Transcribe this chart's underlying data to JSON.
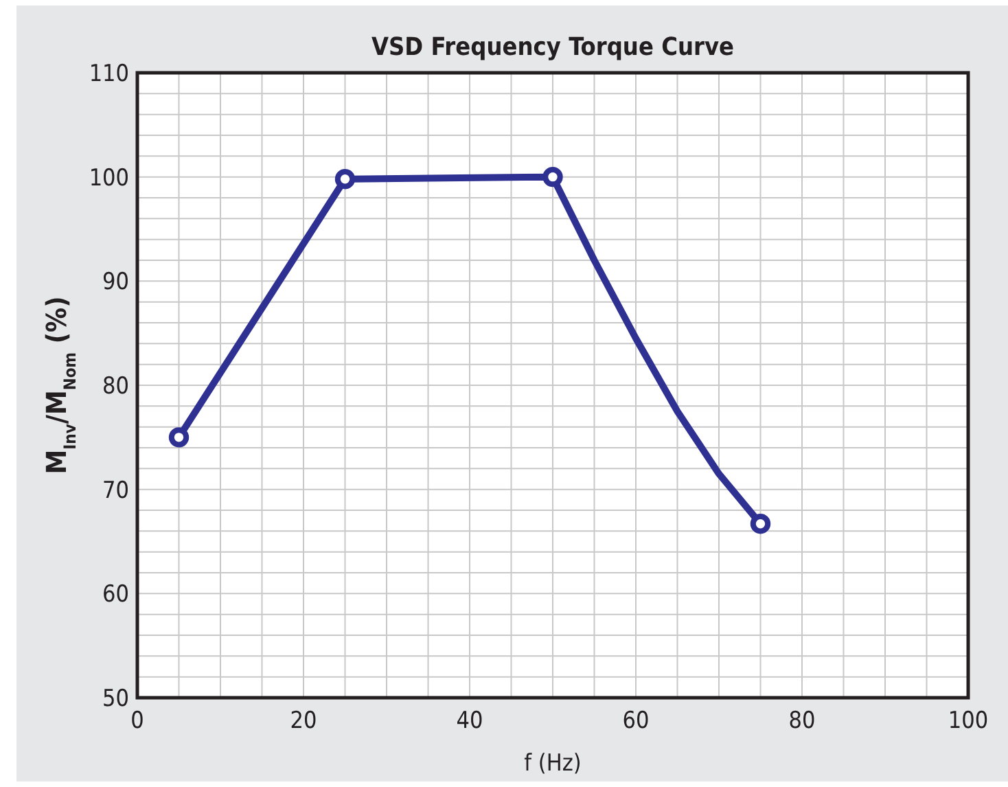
{
  "chart_data": {
    "type": "line",
    "title": "VSD Frequency Torque Curve",
    "xlabel": "f (Hz)",
    "ylabel": "M$_{Inv}$/M$_{Nom}$ (%)",
    "xlim": [
      0,
      100
    ],
    "ylim": [
      50,
      110
    ],
    "xticks": [
      0,
      {
        "value": 5,
        "label": null
      },
      {
        "value": 10,
        "label": null
      },
      {
        "value": 15,
        "label": null
      },
      20,
      {
        "value": 25,
        "label": null
      },
      {
        "value": 30,
        "label": null
      },
      {
        "value": 35,
        "label": null
      },
      40,
      {
        "value": 45,
        "label": null
      },
      {
        "value": 50,
        "label": null
      },
      {
        "value": 55,
        "label": null
      },
      60,
      {
        "value": 65,
        "label": null
      },
      {
        "value": 70,
        "label": null
      },
      {
        "value": 75,
        "label": null
      },
      80,
      {
        "value": 85,
        "label": null
      },
      {
        "value": 90,
        "label": null
      },
      {
        "value": 95,
        "label": null
      },
      100
    ],
    "yticks": [
      50,
      {
        "value": 52,
        "label": null
      },
      {
        "value": 54,
        "label": null
      },
      {
        "value": 56,
        "label": null
      },
      {
        "value": 58,
        "label": null
      },
      60,
      {
        "value": 62,
        "label": null
      },
      {
        "value": 64,
        "label": null
      },
      {
        "value": 66,
        "label": null
      },
      {
        "value": 68,
        "label": null
      },
      70,
      {
        "value": 72,
        "label": null
      },
      {
        "value": 74,
        "label": null
      },
      {
        "value": 76,
        "label": null
      },
      {
        "value": 78,
        "label": null
      },
      80,
      {
        "value": 82,
        "label": null
      },
      {
        "value": 84,
        "label": null
      },
      {
        "value": 86,
        "label": null
      },
      {
        "value": 88,
        "label": null
      },
      90,
      {
        "value": 92,
        "label": null
      },
      {
        "value": 94,
        "label": null
      },
      {
        "value": 96,
        "label": null
      },
      {
        "value": 98,
        "label": null
      },
      100,
      {
        "value": 102,
        "label": null
      },
      {
        "value": 104,
        "label": null
      },
      {
        "value": 106,
        "label": null
      },
      {
        "value": 108,
        "label": null
      },
      110
    ],
    "grid": true,
    "series": [
      {
        "color": "#2e3192",
        "marker": "none",
        "x": [
          5,
          25,
          50,
          55,
          60,
          65,
          70,
          75
        ],
        "values": [
          75,
          99.8,
          100,
          92,
          84.5,
          77.5,
          71.5,
          66.7
        ]
      },
      {
        "type": "scatter",
        "color": "#2e3192",
        "marker": "circle",
        "x": [
          5,
          25,
          50,
          75
        ],
        "values": [
          75,
          99.8,
          100,
          66.7
        ]
      }
    ]
  }
}
